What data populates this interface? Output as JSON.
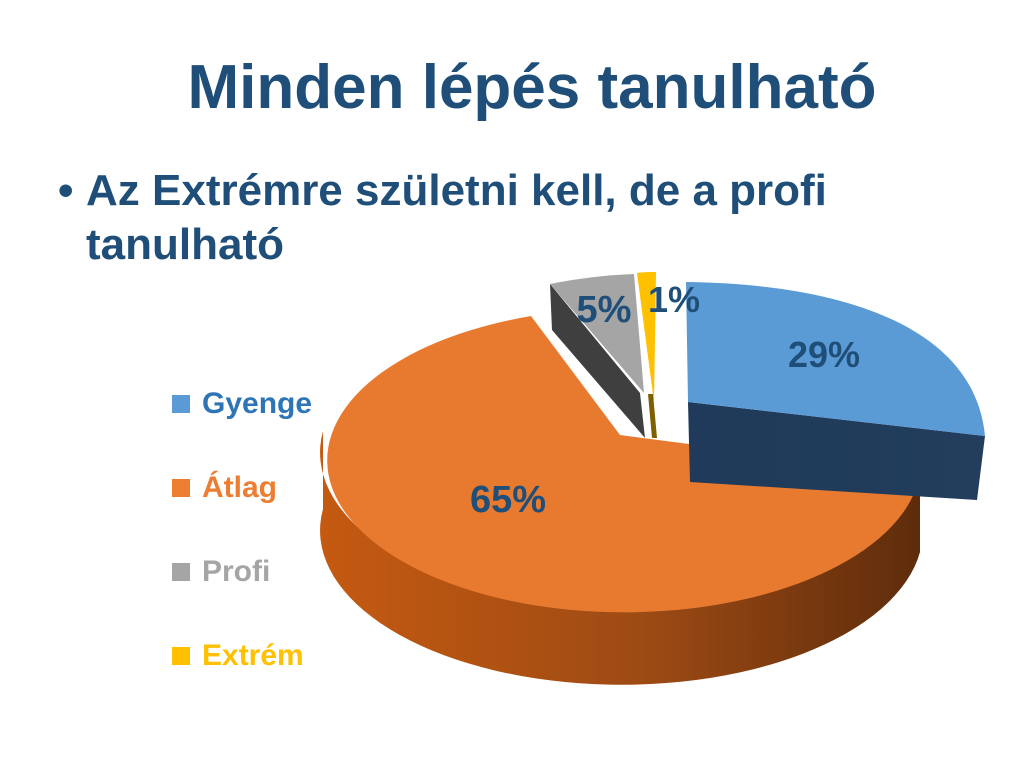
{
  "slide": {
    "title": "Minden lépés tanulható",
    "bullet_symbol": "•",
    "bullet_text": "Az Extrémre születni kell, de a profi tanulható"
  },
  "chart_data": {
    "type": "pie",
    "style": "3d-exploded",
    "legend_position": "left",
    "categories": [
      "Gyenge",
      "Átlag",
      "Profi",
      "Extrém"
    ],
    "values": [
      29,
      65,
      5,
      1
    ],
    "labels": [
      "29%",
      "65%",
      "5%",
      "1%"
    ],
    "colors": {
      "Gyenge": "#5b9bd5",
      "Átlag": "#ed7d31",
      "Profi": "#a5a5a5",
      "Extrém": "#ffc000"
    },
    "legend_text_colors": {
      "Gyenge": "#2e75b6",
      "Átlag": "#ed7d31",
      "Profi": "#a5a5a5",
      "Extrém": "#ffc000"
    }
  }
}
